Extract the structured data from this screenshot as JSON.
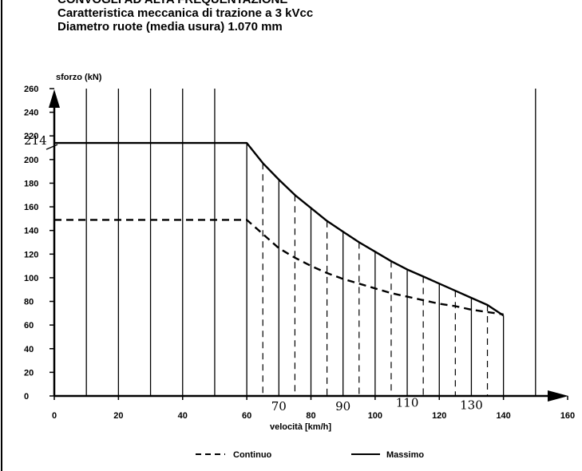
{
  "header": {
    "line1": "CONVOGLI AD ALTA FREQUENTAZIONE",
    "line2": "Caratteristica meccanica di trazione a 3 kVcc",
    "line3": "Diametro ruote (media usura) 1.070 mm"
  },
  "chart_data": {
    "type": "line",
    "xlabel": "velocità [km/h]",
    "ylabel": "sforzo (kN)",
    "xlim": [
      0,
      160
    ],
    "ylim": [
      0,
      260
    ],
    "x_ticks": [
      0,
      20,
      40,
      60,
      80,
      100,
      120,
      140,
      160
    ],
    "x_tick_labels": [
      "0",
      "20",
      "40",
      "60",
      "80",
      "100",
      "120",
      "140",
      "160"
    ],
    "y_ticks": [
      0,
      20,
      40,
      60,
      80,
      100,
      120,
      140,
      160,
      180,
      200,
      220,
      240,
      260
    ],
    "y_tick_labels": [
      "0",
      "20",
      "40",
      "60",
      "80",
      "100",
      "120",
      "140",
      "160",
      "180",
      "200",
      "220",
      "240",
      "260"
    ],
    "grid": "vertical lines every 10 km/h",
    "legend_position": "bottom",
    "series": [
      {
        "name": "Continuo",
        "style": "dashed",
        "x": [
          0,
          60,
          65,
          70,
          75,
          80,
          85,
          90,
          95,
          100,
          105,
          110,
          115,
          120,
          125,
          130,
          135,
          140
        ],
        "y": [
          149,
          149,
          137,
          125,
          117,
          110,
          104,
          99,
          95,
          91,
          87,
          84,
          81,
          78,
          76,
          73,
          71,
          69
        ]
      },
      {
        "name": "Massimo",
        "style": "solid",
        "x": [
          0,
          60,
          65,
          70,
          75,
          80,
          85,
          90,
          95,
          100,
          105,
          110,
          115,
          120,
          125,
          130,
          135,
          140
        ],
        "y": [
          214,
          214,
          197,
          183,
          170,
          159,
          148,
          139,
          130,
          122,
          114,
          107,
          101,
          95,
          89,
          83,
          77,
          68
        ]
      }
    ],
    "annotations": [
      {
        "text": "214",
        "x": 0,
        "y": 214,
        "kind": "handwritten"
      },
      {
        "text": "70",
        "x": 70,
        "y": -10,
        "kind": "handwritten"
      },
      {
        "text": "90",
        "x": 90,
        "y": -10,
        "kind": "handwritten"
      },
      {
        "text": "110",
        "x": 110,
        "y": -7,
        "kind": "handwritten"
      },
      {
        "text": "130",
        "x": 130,
        "y": -9,
        "kind": "handwritten"
      }
    ]
  }
}
